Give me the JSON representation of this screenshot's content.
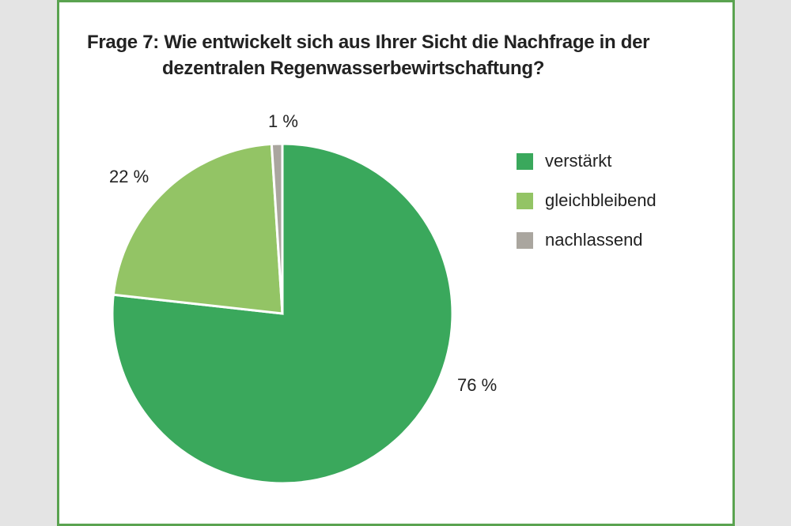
{
  "chart_data": {
    "type": "pie",
    "title": "Frage 7: Wie entwickelt sich aus Ihrer Sicht die Nachfrage in der dezentralen Regenwasserbewirtschaftung?",
    "title_lines": [
      "Frage 7: Wie entwickelt sich aus Ihrer Sicht die Nachfrage in der",
      "dezentralen Regenwasserbewirtschaftung?"
    ],
    "categories": [
      "verstärkt",
      "gleichbleibend",
      "nachlassend"
    ],
    "values": [
      76,
      22,
      1
    ],
    "data_labels": [
      "76 %",
      "22 %",
      "1 %"
    ],
    "colors": [
      "#3aa85c",
      "#93c465",
      "#aaa69f"
    ],
    "legend_position": "right",
    "unit": "%"
  },
  "legend": [
    {
      "label": "verstärkt",
      "color": "#3aa85c"
    },
    {
      "label": "gleichbleibend",
      "color": "#93c465"
    },
    {
      "label": "nachlassend",
      "color": "#aaa69f"
    }
  ]
}
